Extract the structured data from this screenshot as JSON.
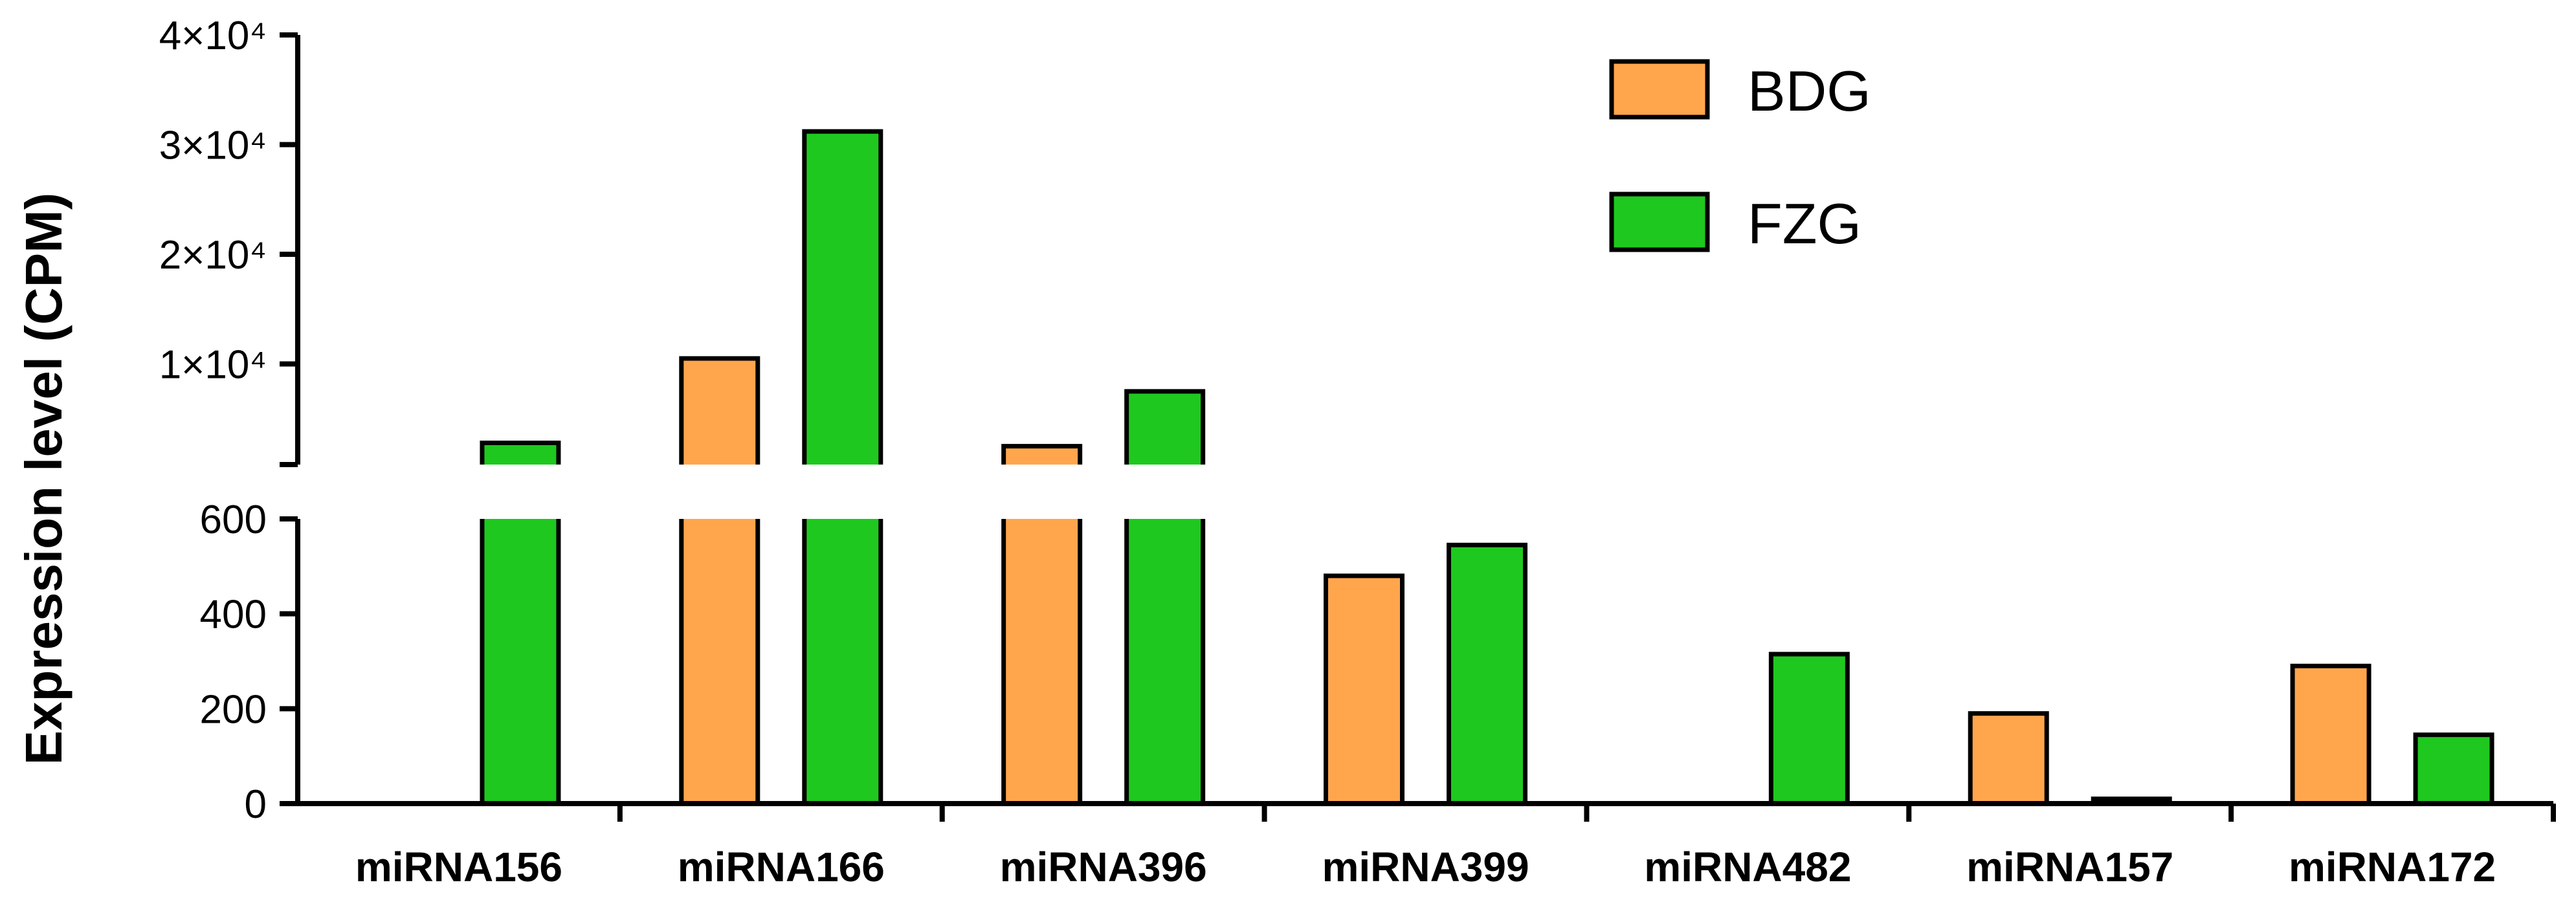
{
  "chart_data": {
    "type": "bar",
    "categories": [
      "miRNA156",
      "miRNA166",
      "miRNA396",
      "miRNA399",
      "miRNA482",
      "miRNA157",
      "miRNA172"
    ],
    "series": [
      {
        "name": "BDG",
        "color": "#FFA64D",
        "values": [
          0,
          10500,
          2500,
          480,
          0,
          190,
          290
        ]
      },
      {
        "name": "FZG",
        "color": "#1FC81F",
        "values": [
          2800,
          31200,
          7500,
          545,
          315,
          10,
          145
        ]
      }
    ],
    "xlabel": "",
    "ylabel": "Expression level (CPM)",
    "y_axis_broken": true,
    "ylim_lower": [
      0,
      600
    ],
    "ylim_upper": [
      0,
      40000
    ],
    "yticks_lower": [
      {
        "value": 0,
        "label": "0"
      },
      {
        "value": 200,
        "label": "200"
      },
      {
        "value": 400,
        "label": "400"
      },
      {
        "value": 600,
        "label": "600"
      }
    ],
    "yticks_upper": [
      {
        "value": 10000,
        "label": "1×10⁴"
      },
      {
        "value": 20000,
        "label": "2×10⁴"
      },
      {
        "value": 30000,
        "label": "3×10⁴"
      },
      {
        "value": 40000,
        "label": "4×10⁴"
      }
    ],
    "legend_position": "top-right",
    "grid": false
  }
}
